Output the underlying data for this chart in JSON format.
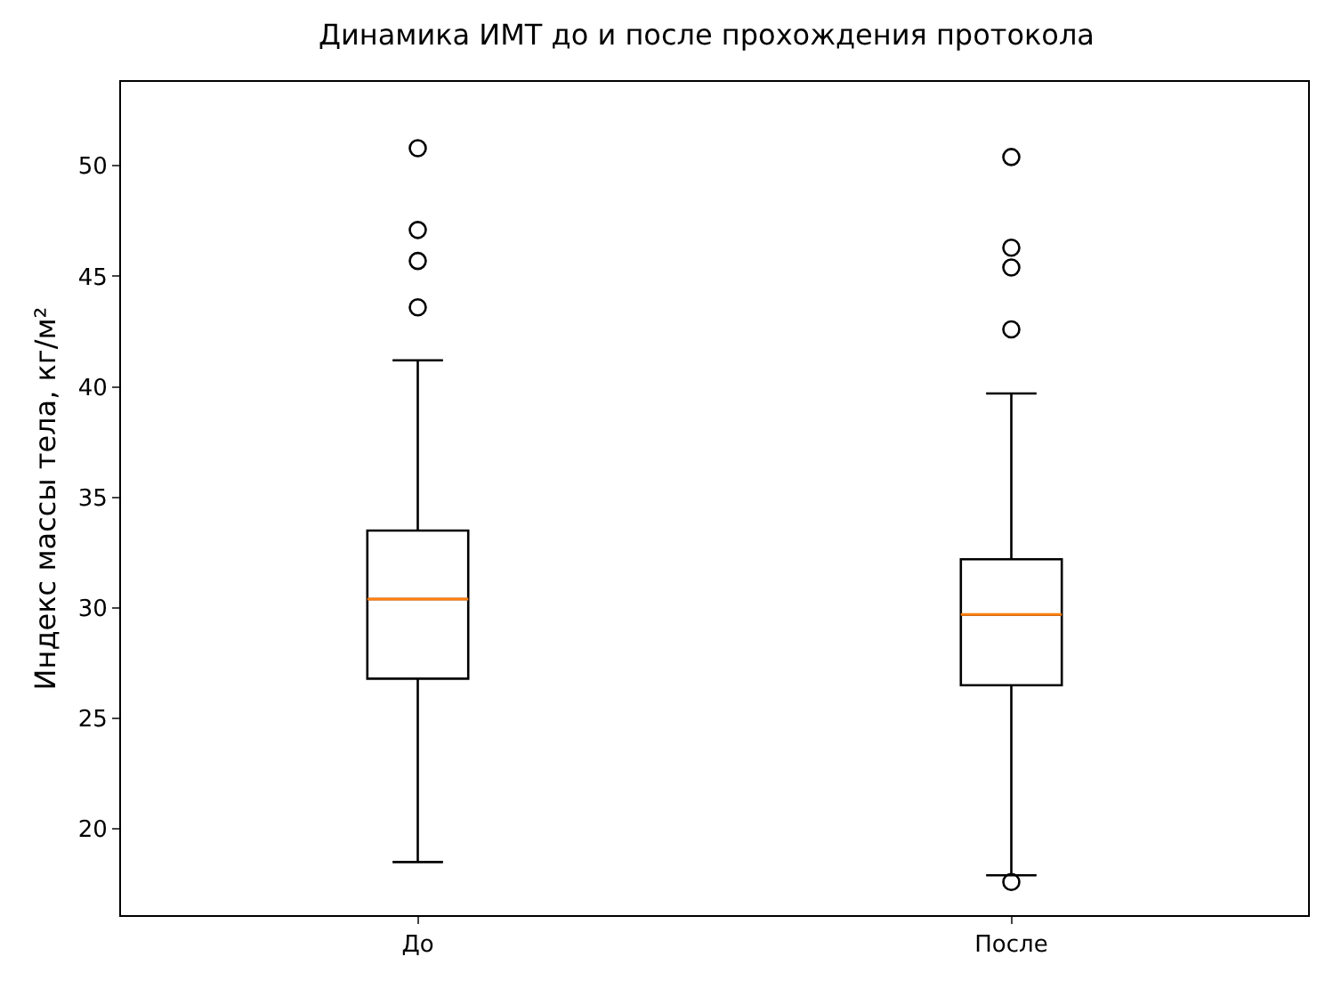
{
  "chart_data": {
    "type": "box",
    "title": "Динамика ИМТ до и после прохождения протокола",
    "ylabel": "Индекс массы тела, кг/м²",
    "categories": [
      "До",
      "После"
    ],
    "boxes": [
      {
        "low": 18.5,
        "q1": 26.8,
        "median": 30.4,
        "q3": 33.5,
        "high": 41.2,
        "outliers": [
          50.8,
          47.1,
          45.7,
          43.6
        ]
      },
      {
        "low": 17.9,
        "q1": 26.5,
        "median": 29.7,
        "q3": 32.2,
        "high": 39.7,
        "outliers": [
          50.4,
          46.3,
          45.4,
          42.6,
          17.6
        ]
      }
    ],
    "ylim": [
      16.1,
      53.8
    ],
    "yticks": [
      20,
      25,
      30,
      35,
      40,
      45,
      50
    ],
    "marker": "circle"
  }
}
